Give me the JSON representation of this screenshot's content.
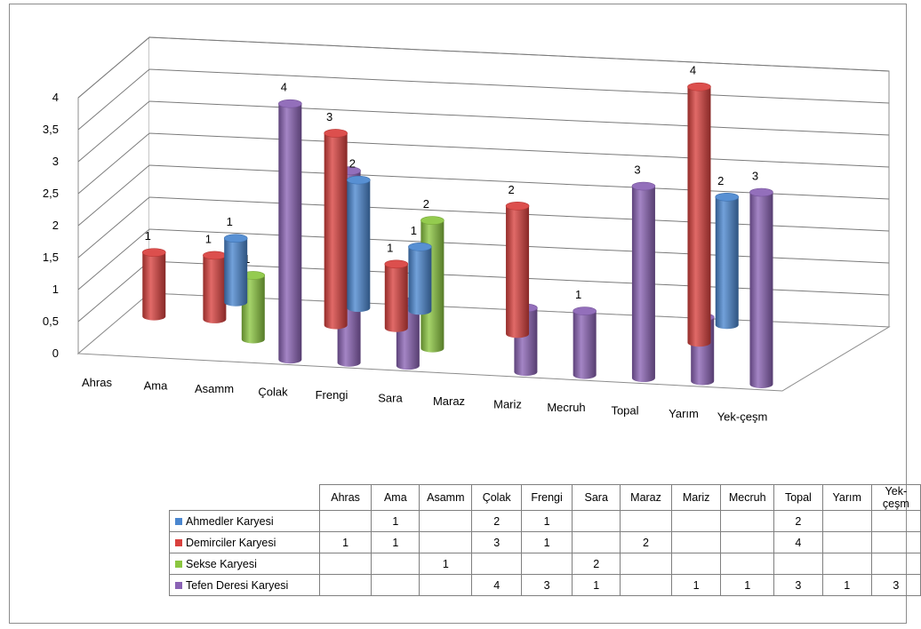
{
  "chart_data": {
    "type": "bar",
    "variant": "3d-cylinder",
    "categories": [
      "Ahras",
      "Ama",
      "Asamm",
      "Çolak",
      "Frengi",
      "Sara",
      "Maraz",
      "Mariz",
      "Mecruh",
      "Topal",
      "Yarım",
      "Yek-çeşm"
    ],
    "series": [
      {
        "name": "Ahmedler Karyesi",
        "color": "#4a86cf",
        "values": [
          null,
          1,
          null,
          2,
          1,
          null,
          null,
          null,
          null,
          2,
          null,
          null
        ]
      },
      {
        "name": "Demirciler Karyesi",
        "color": "#d9403d",
        "values": [
          1,
          1,
          null,
          3,
          1,
          null,
          2,
          null,
          null,
          4,
          null,
          null
        ]
      },
      {
        "name": "Sekse Karyesi",
        "color": "#8bc640",
        "values": [
          null,
          null,
          1,
          null,
          null,
          2,
          null,
          null,
          null,
          null,
          null,
          null
        ]
      },
      {
        "name": "Tefen Deresi Karyesi",
        "color": "#8a62b5",
        "values": [
          null,
          null,
          null,
          4,
          3,
          1,
          null,
          1,
          1,
          3,
          1,
          3
        ]
      }
    ],
    "yticks": [
      "0",
      "0,5",
      "1",
      "1,5",
      "2",
      "2,5",
      "3",
      "3,5",
      "4"
    ],
    "ylim": [
      0,
      4
    ],
    "grid": true,
    "legend": "data table below chart"
  }
}
